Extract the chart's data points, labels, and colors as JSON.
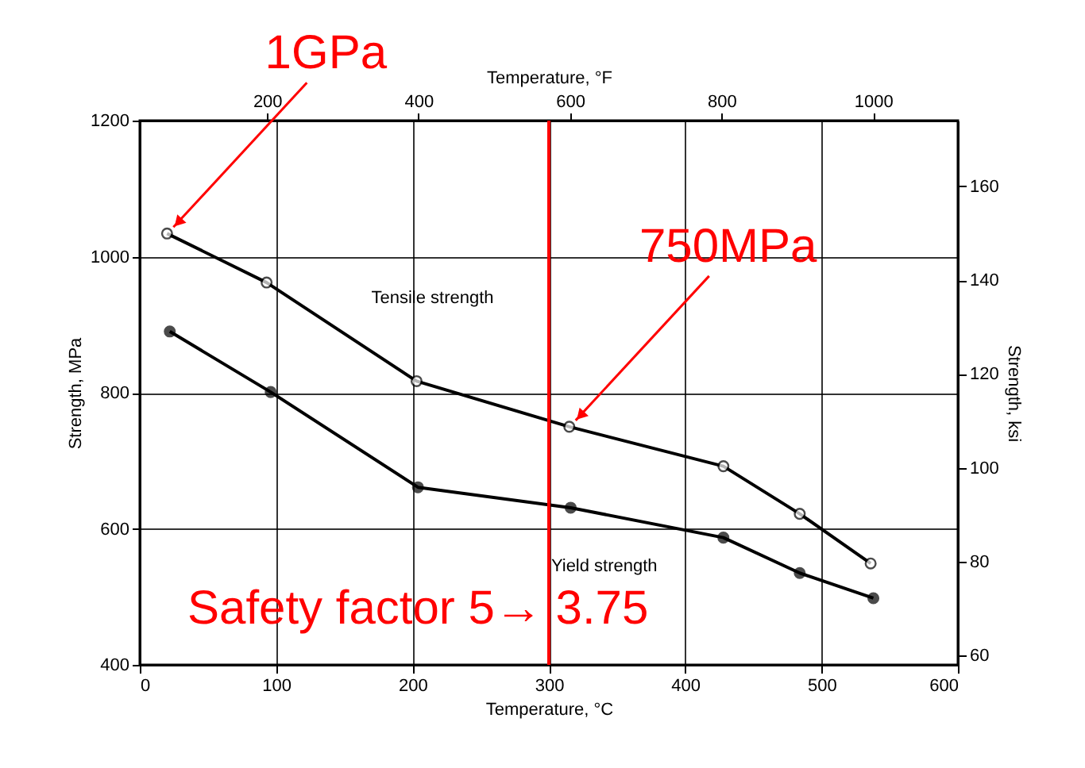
{
  "chart_data": {
    "type": "line",
    "xlabel": "Temperature, °C",
    "ylabel": "Strength, MPa",
    "x2label": "Temperature, °F",
    "y2label": "Strength, ksi",
    "xlim": [
      0,
      600
    ],
    "xticks": [
      0,
      100,
      200,
      300,
      400,
      500,
      600
    ],
    "ylim": [
      400,
      1200
    ],
    "yticks": [
      400,
      600,
      800,
      1000,
      1200
    ],
    "x2lim": [
      32,
      1112
    ],
    "x2ticks": [
      200,
      400,
      600,
      800,
      1000
    ],
    "y2lim": [
      58,
      174
    ],
    "y2ticks": [
      60,
      80,
      100,
      120,
      140,
      160
    ],
    "grid": true,
    "legend": false,
    "marker": "circle",
    "line_style": "solid",
    "series": [
      {
        "name": "Tensile strength",
        "color": "#000000",
        "x": [
          20,
          93,
          203,
          315,
          428,
          484,
          536
        ],
        "values": [
          1034,
          962,
          817,
          750,
          692,
          622,
          549
        ]
      },
      {
        "name": "Yield strength",
        "color": "#000000",
        "x": [
          22,
          96,
          204,
          316,
          428,
          484,
          538
        ],
        "values": [
          890,
          801,
          661,
          631,
          587,
          535,
          498
        ]
      }
    ],
    "ref_lines": [
      {
        "axis": "x",
        "value": 300,
        "color": "#ff0000"
      }
    ],
    "annotations": [
      {
        "text": "1GPa",
        "x": 20,
        "y": 1034
      },
      {
        "text": "750MPa",
        "x": 315,
        "y": 750
      },
      "Safety factor 5→ 3.75"
    ]
  }
}
